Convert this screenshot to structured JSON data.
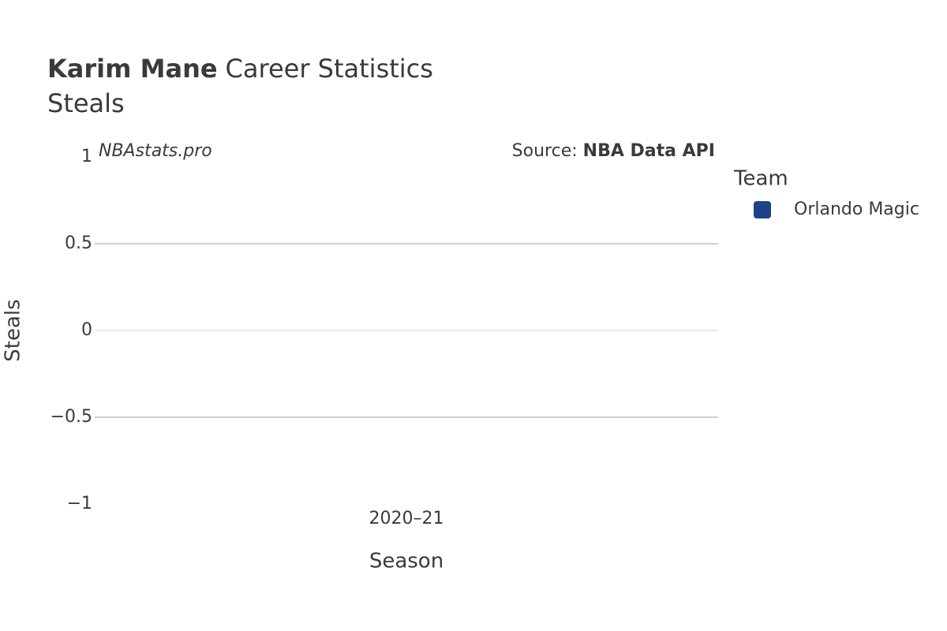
{
  "chart_data": {
    "type": "bar",
    "title": {
      "bold": "Karim Mane",
      "rest": "Career Statistics"
    },
    "subtitle": "Steals",
    "watermark": "NBAstats.pro",
    "source": {
      "label": "Source:",
      "name": "NBA Data API"
    },
    "x_label": "Season",
    "y_label": "Steals",
    "categories": [
      "2020–21"
    ],
    "series": [
      {
        "name": "Orlando Magic",
        "color": "#1d428a",
        "values": [
          0
        ]
      }
    ],
    "legend_title": "Team",
    "ylim": [
      -1,
      1
    ],
    "yticks": [
      {
        "value": -1,
        "label": "−1"
      },
      {
        "value": -0.5,
        "label": "−0.5"
      },
      0,
      0.5,
      1
    ],
    "grid": true
  }
}
